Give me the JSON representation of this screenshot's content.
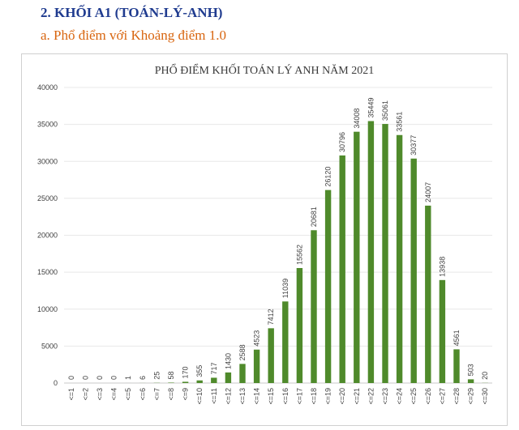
{
  "header": {
    "heading": "2. KHỐI A1 (TOÁN-LÝ-ANH)",
    "subheading": "a. Phổ điểm với Khoảng điểm 1.0"
  },
  "colors": {
    "bar": "#4f8a2b",
    "heading": "#1f3b8f",
    "subheading": "#d8650f"
  },
  "chart_data": {
    "type": "bar",
    "title": "PHỔ ĐIỂM KHỐI TOÁN LÝ ANH NĂM 2021",
    "xlabel": "",
    "ylabel": "",
    "ylim": [
      0,
      40000
    ],
    "yticks": [
      0,
      5000,
      10000,
      15000,
      20000,
      25000,
      30000,
      35000,
      40000
    ],
    "grid": true,
    "legend": "none",
    "categories": [
      "<=1",
      "<=2",
      "<=3",
      "<=4",
      "<=5",
      "<=6",
      "<=7",
      "<=8",
      "<=9",
      "<=10",
      "<=11",
      "<=12",
      "<=13",
      "<=14",
      "<=15",
      "<=16",
      "<=17",
      "<=18",
      "<=19",
      "<=20",
      "<=21",
      "<=22",
      "<=23",
      "<=24",
      "<=25",
      "<=26",
      "<=27",
      "<=28",
      "<=29",
      "<=30"
    ],
    "values": [
      0,
      0,
      0,
      0,
      1,
      6,
      25,
      58,
      170,
      355,
      717,
      1430,
      2588,
      4523,
      7412,
      11039,
      15562,
      20681,
      26120,
      30796,
      34008,
      35449,
      35061,
      33561,
      30377,
      24007,
      13938,
      4561,
      503,
      20
    ]
  }
}
